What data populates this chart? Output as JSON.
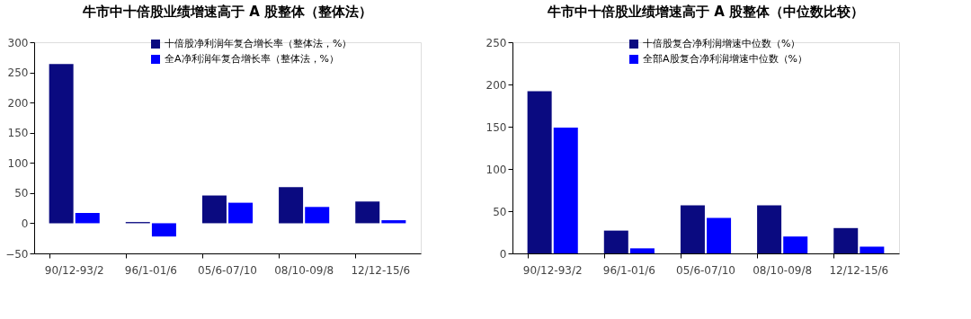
{
  "chart_data": [
    {
      "type": "bar",
      "title": "牛市中十倍股业绩增速高于 A 股整体（整体法）",
      "categories": [
        "90/12-93/2",
        "96/1-01/6",
        "05/6-07/10",
        "08/10-09/8",
        "12/12-15/6"
      ],
      "series": [
        {
          "name": "十倍股净利润年复合增长率（整体法，%）",
          "color": "#0a0a80",
          "values": [
            264,
            2,
            46,
            60,
            36
          ]
        },
        {
          "name": "全A净利润年复合增长率（整体法，%）",
          "color": "#0000ff",
          "values": [
            17,
            -22,
            34,
            27,
            5
          ]
        }
      ],
      "ylim": [
        -50,
        300
      ],
      "yticks": [
        -50,
        0,
        50,
        100,
        150,
        200,
        250,
        300
      ],
      "grid": false,
      "legend": "top"
    },
    {
      "type": "bar",
      "title": "牛市中十倍股业绩增速高于 A 股整体（中位数比较）",
      "categories": [
        "90/12-93/2",
        "96/1-01/6",
        "05/6-07/10",
        "08/10-09/8",
        "12/12-15/6"
      ],
      "series": [
        {
          "name": "十倍股复合净利润增速中位数（%）",
          "color": "#0a0a80",
          "values": [
            192,
            27,
            57,
            57,
            30
          ]
        },
        {
          "name": "全部A股复合净利润增速中位数（%）",
          "color": "#0000ff",
          "values": [
            149,
            6,
            42,
            20,
            8
          ]
        }
      ],
      "ylim": [
        0,
        250
      ],
      "yticks": [
        0,
        50,
        100,
        150,
        200,
        250
      ],
      "grid": false,
      "legend": "top"
    }
  ]
}
